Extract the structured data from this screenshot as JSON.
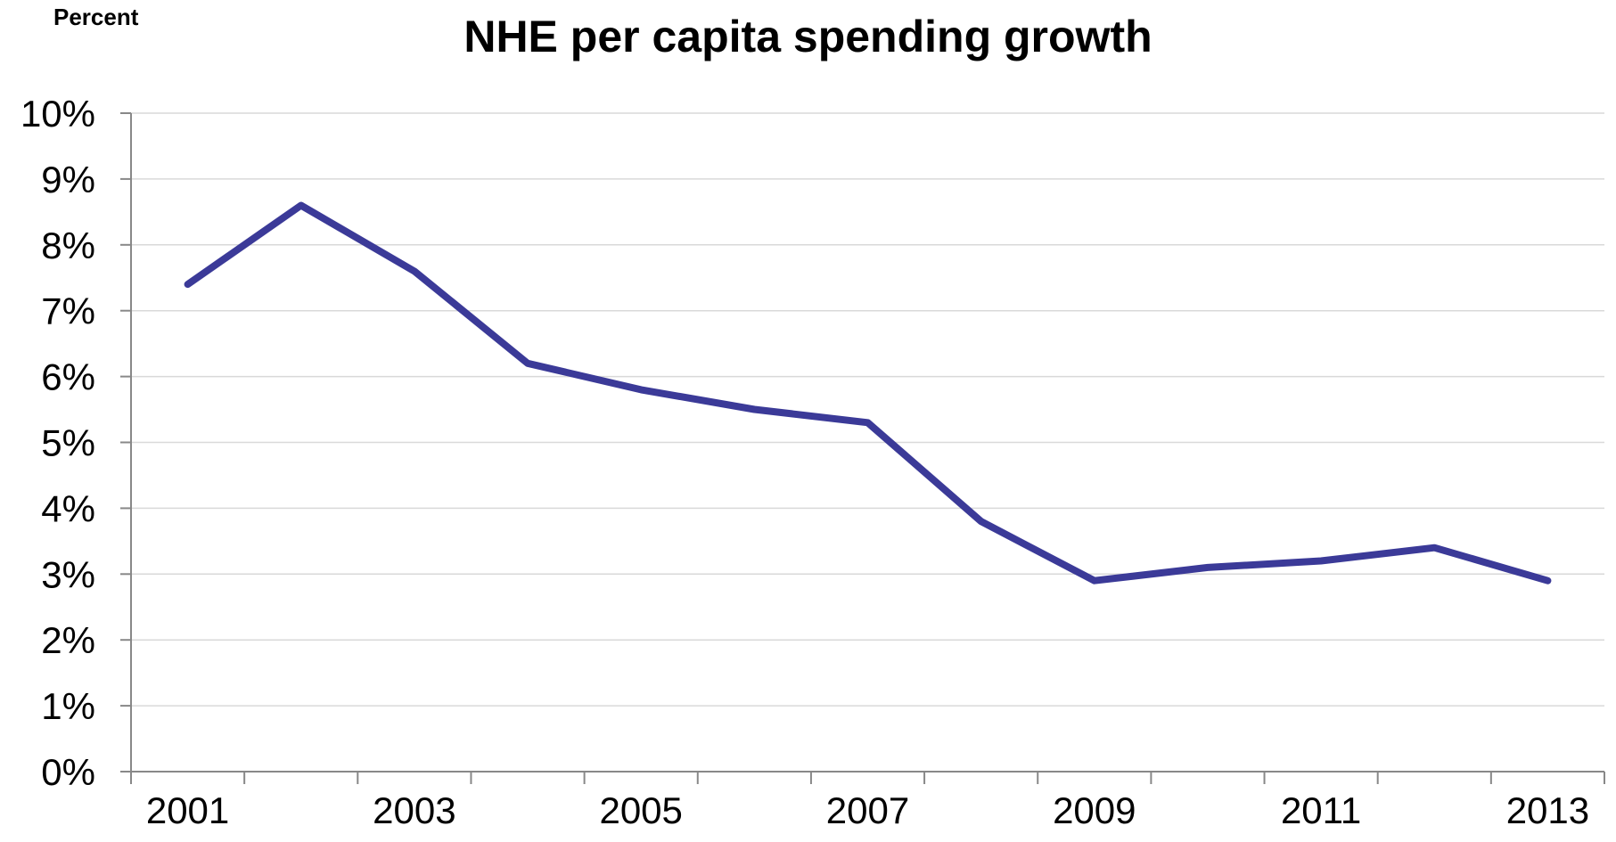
{
  "chart_data": {
    "type": "line",
    "title": "NHE per capita spending growth",
    "unit_label": "Percent",
    "xlabel": "",
    "ylabel": "",
    "ylim": [
      0,
      10
    ],
    "y_ticks": [
      "0%",
      "1%",
      "2%",
      "3%",
      "4%",
      "5%",
      "6%",
      "7%",
      "8%",
      "9%",
      "10%"
    ],
    "x": [
      2001,
      2002,
      2003,
      2004,
      2005,
      2006,
      2007,
      2008,
      2009,
      2010,
      2011,
      2012,
      2013
    ],
    "x_tick_labels": [
      "2001",
      "2003",
      "2005",
      "2007",
      "2009",
      "2011",
      "2013"
    ],
    "grid": true,
    "legend": "none",
    "series": [
      {
        "values": [
          7.4,
          8.6,
          7.6,
          6.2,
          5.8,
          5.5,
          5.3,
          3.8,
          2.9,
          3.1,
          3.2,
          3.4,
          2.9
        ],
        "color": "#3b3a98"
      }
    ]
  }
}
